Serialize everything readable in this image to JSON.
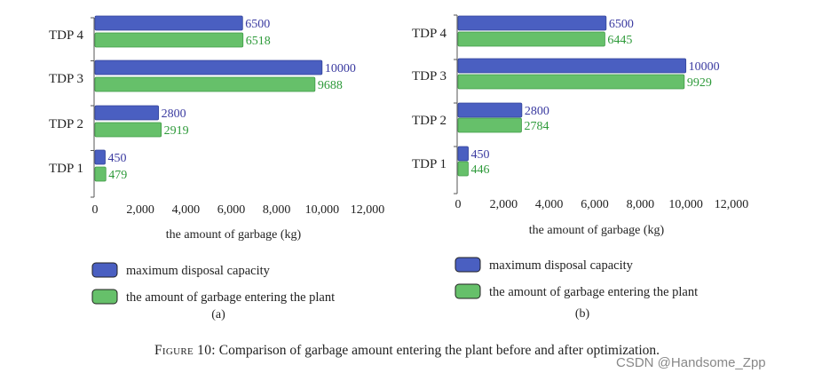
{
  "colors": {
    "capacity": "#4a5fc1",
    "garbage": "#66c06a",
    "capacity_text": "#3a3aa0",
    "garbage_text": "#2e9a3a"
  },
  "chart_data": [
    {
      "type": "bar",
      "orientation": "horizontal",
      "panel_label": "(a)",
      "categories": [
        "TDP 1",
        "TDP 2",
        "TDP 3",
        "TDP 4"
      ],
      "series": [
        {
          "name": "maximum disposal capacity",
          "values": [
            450,
            2800,
            10000,
            6500
          ]
        },
        {
          "name": "the amount of garbage entering the plant",
          "values": [
            479,
            2919,
            9688,
            6518
          ]
        }
      ],
      "xlabel": "the amount of garbage (kg)",
      "xlim": [
        0,
        12000
      ],
      "xticks": [
        "0",
        "2,000",
        "4,000",
        "6,000",
        "8,000",
        "10,000",
        "12,000"
      ]
    },
    {
      "type": "bar",
      "orientation": "horizontal",
      "panel_label": "(b)",
      "categories": [
        "TDP 1",
        "TDP 2",
        "TDP 3",
        "TDP 4"
      ],
      "series": [
        {
          "name": "maximum disposal capacity",
          "values": [
            450,
            2800,
            10000,
            6500
          ]
        },
        {
          "name": "the amount of garbage entering the plant",
          "values": [
            446,
            2784,
            9929,
            6445
          ]
        }
      ],
      "xlabel": "the amount of garbage (kg)",
      "xlim": [
        0,
        12000
      ],
      "xticks": [
        "0",
        "2,000",
        "4,000",
        "6,000",
        "8,000",
        "10,000",
        "12,000"
      ]
    }
  ],
  "caption": {
    "prefix": "Figure 10:",
    "text": "Comparison of garbage amount entering the plant before and after optimization."
  },
  "watermark": "CSDN @Handsome_Zpp"
}
